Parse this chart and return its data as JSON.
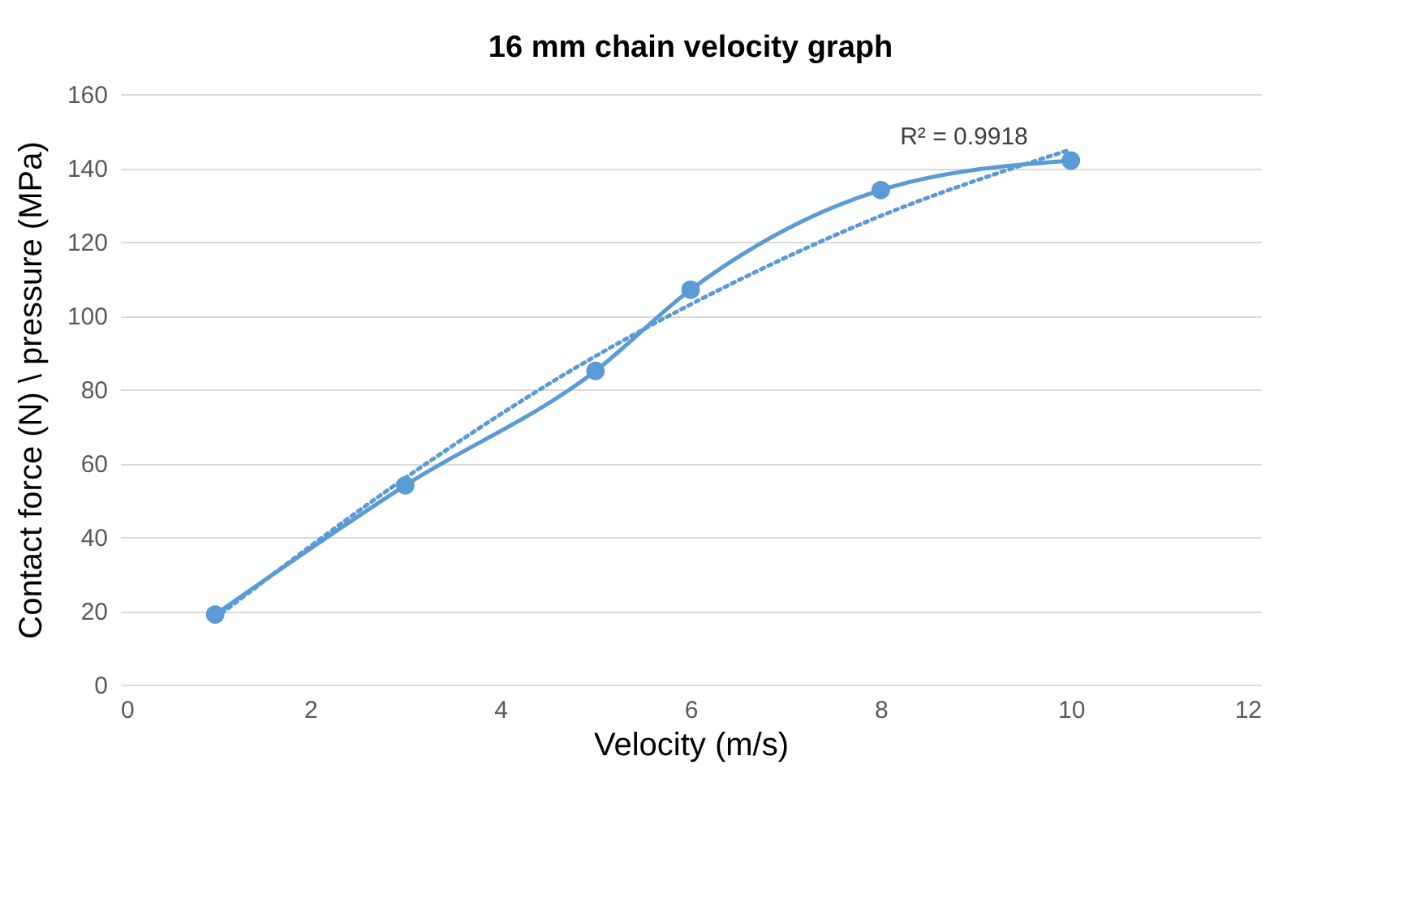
{
  "chart_data": {
    "type": "line",
    "title": "16 mm chain velocity graph",
    "xlabel": "Velocity (m/s)",
    "ylabel": "Contact force (N) \\ pressure (MPa)",
    "x": [
      1,
      3,
      5,
      6,
      8,
      10
    ],
    "series": [
      {
        "color": "#5b9bd5",
        "values": [
          19,
          54,
          85,
          107,
          134,
          142
        ],
        "marker": "circle",
        "line_style": "solid"
      },
      {
        "type": "line",
        "color": "#5b9bd5",
        "x": [
          1,
          3,
          5,
          6,
          8,
          10
        ],
        "values": [
          18,
          56,
          89,
          103,
          127,
          145
        ],
        "marker": "none",
        "line_style": "dotted"
      }
    ],
    "xlim": [
      0,
      12
    ],
    "xticks": [
      0,
      2,
      4,
      6,
      8,
      10,
      12
    ],
    "ylim": [
      0,
      160
    ],
    "yticks": [
      0,
      20,
      40,
      60,
      80,
      100,
      120,
      140,
      160
    ],
    "grid": "y",
    "annotations": [
      "R² = 0.9918"
    ]
  }
}
